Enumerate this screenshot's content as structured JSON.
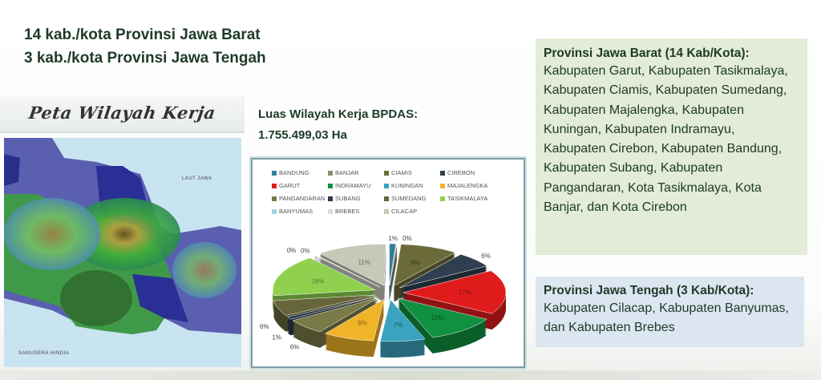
{
  "header": {
    "line1": "14 kab./kota Provinsi Jawa Barat",
    "line2": "3 kab./kota Provinsi Jawa Tengah"
  },
  "map": {
    "title": "Peta Wilayah Kerja",
    "label_sea_north": "LAUT JAWA",
    "label_sea_south": "SAMUDERA HINDIA"
  },
  "area": {
    "label": "Luas Wilayah Kerja BPDAS:",
    "value": "1.755.499,03 Ha"
  },
  "chart_data": {
    "type": "pie",
    "style": "3d-exploded",
    "legend_position": "top",
    "categories": [
      "BANDUNG",
      "BANJAR",
      "CIAMIS",
      "CIREBON",
      "GARUT",
      "INDRAMAYU",
      "KUNINGAN",
      "MAJALENGKA",
      "PANGANDARAN",
      "SUBANG",
      "SUMEDANG",
      "TASIKMALAYA",
      "BANYUMAS",
      "BREBES",
      "CILACAP"
    ],
    "values": [
      1,
      0,
      9,
      6,
      17,
      11,
      7,
      8,
      6,
      1,
      6,
      16,
      0,
      0,
      11
    ],
    "labels": [
      "1%",
      "0%",
      "9%",
      "6%",
      "17%",
      "11%",
      "7%",
      "8%",
      "6%",
      "1%",
      "6%",
      "16%",
      "0%",
      "0%",
      "11%"
    ],
    "colors": [
      "#2e7f9a",
      "#8c8c6a",
      "#6b6b3a",
      "#2f3f4f",
      "#e01b1b",
      "#109040",
      "#3aa3bf",
      "#f0b429",
      "#7a7a48",
      "#2b3a4a",
      "#66663a",
      "#8fd14f",
      "#9fd3e0",
      "#dcdcdc",
      "#c8c8b8"
    ]
  },
  "barat": {
    "heading": "Provinsi Jawa Barat (14 Kab/Kota):",
    "body": "Kabupaten Garut, Kabupaten Tasikmalaya, Kabupaten Ciamis, Kabupaten Sumedang, Kabupaten Majalengka, Kabupaten Kuningan, Kabupaten Indramayu, Kabupaten Cirebon, Kabupaten Bandung, Kabupaten Subang, Kabupaten Pangandaran, Kota Tasikmalaya, Kota Banjar, dan Kota Cirebon"
  },
  "tengah": {
    "heading": "Provinsi Jawa Tengah (3 Kab/Kota):",
    "body": "Kabupaten Cilacap, Kabupaten Banyumas, dan Kabupaten Brebes"
  }
}
